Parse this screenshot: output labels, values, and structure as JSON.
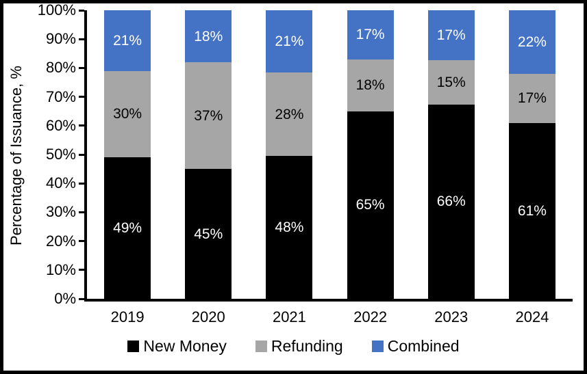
{
  "chart_data": {
    "type": "bar",
    "stacked": true,
    "title": "",
    "xlabel": "",
    "ylabel": "Percentage of Issuance, %",
    "categories": [
      "2019",
      "2020",
      "2021",
      "2022",
      "2023",
      "2024"
    ],
    "series": [
      {
        "name": "New Money",
        "color": "#000000",
        "label_color": "#ffffff",
        "values": [
          49,
          45,
          48,
          65,
          66,
          61
        ]
      },
      {
        "name": "Refunding",
        "color": "#a6a6a6",
        "label_color": "#000000",
        "values": [
          30,
          37,
          28,
          18,
          15,
          17
        ]
      },
      {
        "name": "Combined",
        "color": "#4472c4",
        "label_color": "#ffffff",
        "values": [
          21,
          18,
          21,
          17,
          17,
          22
        ]
      }
    ],
    "value_suffix": "%",
    "y_ticks": [
      "0%",
      "10%",
      "20%",
      "30%",
      "40%",
      "50%",
      "60%",
      "70%",
      "80%",
      "90%",
      "100%"
    ],
    "ylim": [
      0,
      100
    ],
    "grid": false,
    "legend_position": "bottom",
    "axis_color": "#000000",
    "background_color": "#ffffff"
  }
}
